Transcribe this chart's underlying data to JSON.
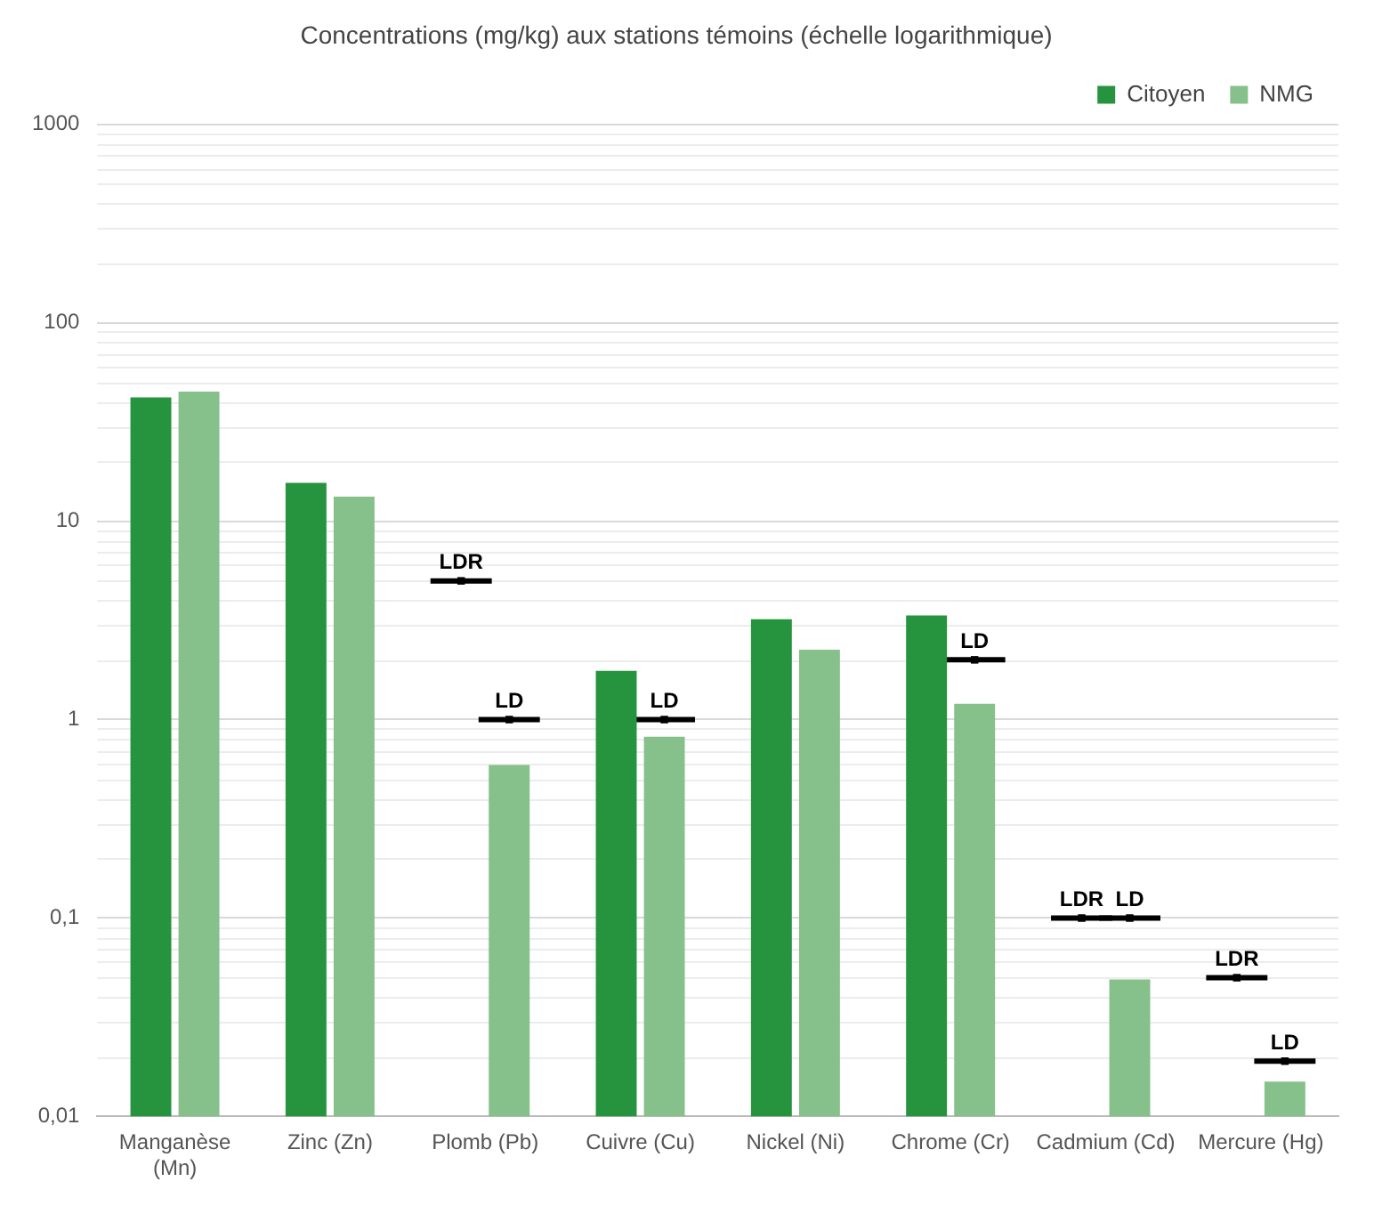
{
  "chart_data": {
    "type": "bar",
    "title": "Concentrations (mg/kg) aux stations témoins (échelle logarithmique)",
    "categories": [
      "Manganèse (Mn)",
      "Zinc (Zn)",
      "Plomb (Pb)",
      "Cuivre (Cu)",
      "Nickel (Ni)",
      "Chrome (Cr)",
      "Cadmium (Cd)",
      "Mercure (Hg)"
    ],
    "series": [
      {
        "name": "Citoyen",
        "color": "#26943f",
        "values": [
          42,
          15.6,
          null,
          1.76,
          3.2,
          3.35,
          null,
          null
        ]
      },
      {
        "name": "NMG",
        "color": "#86c08a",
        "values": [
          45,
          13.3,
          0.59,
          0.82,
          2.25,
          1.2,
          0.049,
          0.015
        ]
      },
      {
        "name": "LDR",
        "type": "scatter",
        "color": "#000000",
        "x": [
          "Plomb (Pb)",
          "Cadmium (Cd)",
          "Mercure (Hg)"
        ],
        "values": [
          5,
          0.1,
          0.05
        ]
      },
      {
        "name": "LD",
        "type": "scatter",
        "color": "#000000",
        "x": [
          "Plomb (Pb)",
          "Cuivre (Cu)",
          "Chrome (Cr)",
          "Cadmium (Cd)",
          "Mercure (Hg)"
        ],
        "values": [
          1,
          1,
          2,
          0.1,
          0.019
        ]
      }
    ],
    "log": "y",
    "ylim": [
      0.01,
      1000
    ],
    "yticks": [
      {
        "value": 0.01,
        "label": "0,01"
      },
      {
        "value": 0.1,
        "label": "0,1"
      },
      1,
      10,
      100,
      1000
    ],
    "grid": "y",
    "legend": "top right"
  }
}
